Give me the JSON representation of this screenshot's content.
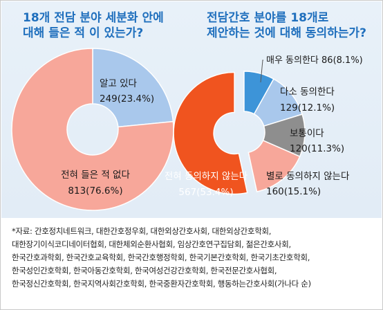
{
  "chart_data": [
    {
      "type": "pie",
      "style": "donut",
      "title": "18개 전담 분야 세분화 안에\n대해 들은 적 이 있는가?",
      "slices": [
        {
          "label": "알고 있다",
          "count": 249,
          "pct": 23.4,
          "value_text": "249(23.4%)",
          "color": "#a9c8ec"
        },
        {
          "label": "전혀 들은 적 없다",
          "count": 813,
          "pct": 76.6,
          "value_text": "813(76.6%)",
          "color": "#f7a79a"
        }
      ]
    },
    {
      "type": "pie",
      "style": "donut",
      "title": "전담간호 분야를 18개로\n제안하는 것에 대해 동의하는가?",
      "slices": [
        {
          "label": "매우 동의한다",
          "count": 86,
          "pct": 8.1,
          "value_text": "86(8.1%)",
          "color": "#3d94d8"
        },
        {
          "label": "다소 동의한다",
          "count": 129,
          "pct": 12.1,
          "value_text": "129(12.1%)",
          "color": "#a9c8ec"
        },
        {
          "label": "보통이다",
          "count": 120,
          "pct": 11.3,
          "value_text": "120(11.3%)",
          "color": "#8e8e8e"
        },
        {
          "label": "별로 동의하지 않는다",
          "count": 160,
          "pct": 15.1,
          "value_text": "160(15.1%)",
          "color": "#f7a79a"
        },
        {
          "label": "전혀 동의하지 않는다",
          "count": 567,
          "pct": 53.4,
          "value_text": "567(53.4%)",
          "color": "#f0541f"
        }
      ]
    }
  ],
  "footnote": "*자료: 간호정치네트워크, 대한간호정우회, 대한외상간호사회, 대한외상간호학회,\n대한장기이식코디네이터협회, 대한체외순환사협회, 임상간호연구집담회, 젊은간호사회,\n한국간호과학회, 한국간호교육학회, 한국간호행정학회, 한국기본간호학회, 한국기초간호학회,\n한국성인간호학회, 한국아동간호학회, 한국여성건강간호학회, 한국전문간호사협회,\n한국정신간호학회, 한국지역사회간호학회, 한국중환자간호학회, 행동하는간호사회(가나다 순)"
}
